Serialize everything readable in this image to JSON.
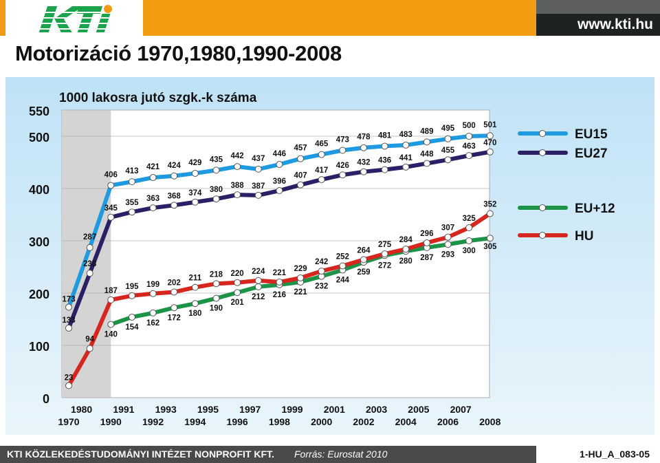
{
  "header": {
    "logo_text": "KTI",
    "url": "www.kti.hu"
  },
  "title": "Motorizáció 1970,1980,1990-2008",
  "footer": {
    "org": "KTI KÖZLEKEDÉSTUDOMÁNYI INTÉZET NONPROFIT KFT.",
    "source": "Forrás: Eurostat 2010",
    "code": "1-HU_A_083-05"
  },
  "colors": {
    "EU15": "#1e9be0",
    "EU27": "#2b1f66",
    "EU+12": "#1c9448",
    "HU": "#d6261e",
    "panel_bg": "#d7ecf8",
    "shaded": "#d4d4d4"
  },
  "chart_data": {
    "type": "line",
    "title": "1000 lakosra jutó szgk.-k száma",
    "xlabel": "",
    "ylabel": "",
    "ylim": [
      0,
      550
    ],
    "yticks": [
      0,
      100,
      200,
      300,
      400,
      500,
      550
    ],
    "x_upper_labels": [
      "1980",
      "1991",
      "1993",
      "1995",
      "1997",
      "1999",
      "2001",
      "2003",
      "2005",
      "2007"
    ],
    "x_lower_labels": [
      "1970",
      "1990",
      "1992",
      "1994",
      "1996",
      "1998",
      "2000",
      "2002",
      "2004",
      "2006",
      "2008"
    ],
    "grid": true,
    "legend_placement": "right",
    "shaded_region": [
      "1970",
      "1990"
    ],
    "series": [
      {
        "name": "EU15",
        "x": [
          "1980",
          "1990",
          "1991",
          "1992",
          "1993",
          "1994",
          "1995",
          "1996",
          "1997",
          "1998",
          "1999",
          "2000",
          "2001",
          "2002",
          "2003",
          "2004",
          "2005",
          "2006",
          "2007",
          "2008"
        ],
        "values": [
          287,
          406,
          413,
          421,
          424,
          429,
          435,
          442,
          437,
          446,
          457,
          465,
          473,
          478,
          481,
          483,
          489,
          495,
          500,
          501
        ]
      },
      {
        "name": "EU27",
        "x": [
          "1980",
          "1990",
          "1991",
          "1992",
          "1993",
          "1994",
          "1995",
          "1996",
          "1997",
          "1998",
          "1999",
          "2000",
          "2001",
          "2002",
          "2003",
          "2004",
          "2005",
          "2006",
          "2007",
          "2008"
        ],
        "values": [
          238,
          345,
          355,
          363,
          368,
          374,
          380,
          388,
          387,
          396,
          407,
          417,
          426,
          432,
          436,
          441,
          448,
          455,
          463,
          470
        ]
      },
      {
        "name": "EU+12",
        "x": [
          "1990",
          "1991",
          "1992",
          "1993",
          "1994",
          "1995",
          "1996",
          "1997",
          "1998",
          "1999",
          "2000",
          "2001",
          "2002",
          "2003",
          "2004",
          "2005",
          "2006",
          "2007",
          "2008"
        ],
        "values": [
          140,
          154,
          162,
          172,
          180,
          190,
          201,
          212,
          216,
          221,
          232,
          244,
          259,
          272,
          280,
          287,
          293,
          300,
          305
        ]
      },
      {
        "name": "HU",
        "x": [
          "1970",
          "1980",
          "1990",
          "1991",
          "1992",
          "1993",
          "1994",
          "1995",
          "1996",
          "1997",
          "1998",
          "1999",
          "2000",
          "2001",
          "2002",
          "2003",
          "2004",
          "2005",
          "2006",
          "2007",
          "2008"
        ],
        "values": [
          23,
          94,
          187,
          195,
          199,
          202,
          211,
          218,
          220,
          224,
          221,
          229,
          242,
          252,
          264,
          275,
          284,
          296,
          307,
          325,
          352
        ]
      }
    ],
    "extra_points": [
      {
        "x": "1970",
        "value": 173,
        "color_key": "EU15"
      },
      {
        "x": "1970",
        "value": 133,
        "color_key": "EU27"
      }
    ]
  }
}
